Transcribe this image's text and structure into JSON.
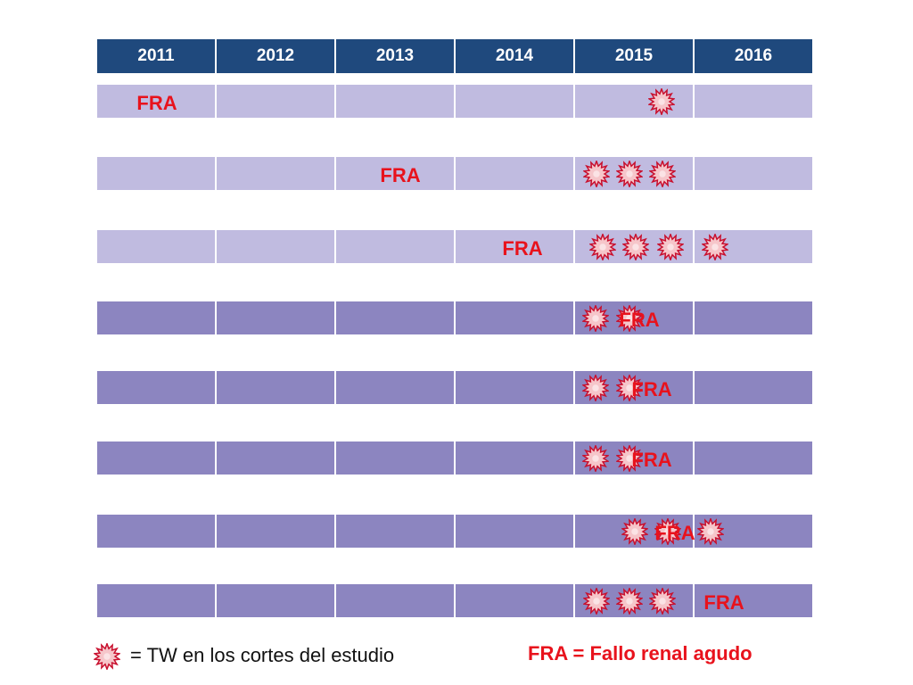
{
  "years": [
    "2011",
    "2012",
    "2013",
    "2014",
    "2015",
    "2016"
  ],
  "abbr": "FRA",
  "burst_icon": "tw-burst-icon",
  "colors": {
    "header": "#1f497d",
    "row_light": "#c0bbe0",
    "row_dark": "#8c85c0",
    "accent": "#e8121c"
  },
  "rows": [
    {
      "shade": "light",
      "fra_col": 0,
      "tw_col": 4,
      "tw_count": 1
    },
    {
      "shade": "light",
      "fra_col": 2,
      "tw_col": 4,
      "tw_count": 3
    },
    {
      "shade": "light",
      "fra_col": 3,
      "tw_col": 4,
      "tw_count": 4
    },
    {
      "shade": "dark",
      "fra_col": 4,
      "tw_col": 4,
      "tw_count": 2
    },
    {
      "shade": "dark",
      "fra_col": 4,
      "tw_col": 4,
      "tw_count": 2
    },
    {
      "shade": "dark",
      "fra_col": 4,
      "tw_col": 4,
      "tw_count": 2
    },
    {
      "shade": "dark",
      "fra_col": 4,
      "tw_col": 4,
      "tw_count": 3
    },
    {
      "shade": "dark",
      "fra_col": 5,
      "tw_col": 4,
      "tw_count": 3
    }
  ],
  "legend": {
    "tw_text": "= TW en los cortes del estudio",
    "fra_def": "FRA = Fallo renal agudo"
  }
}
